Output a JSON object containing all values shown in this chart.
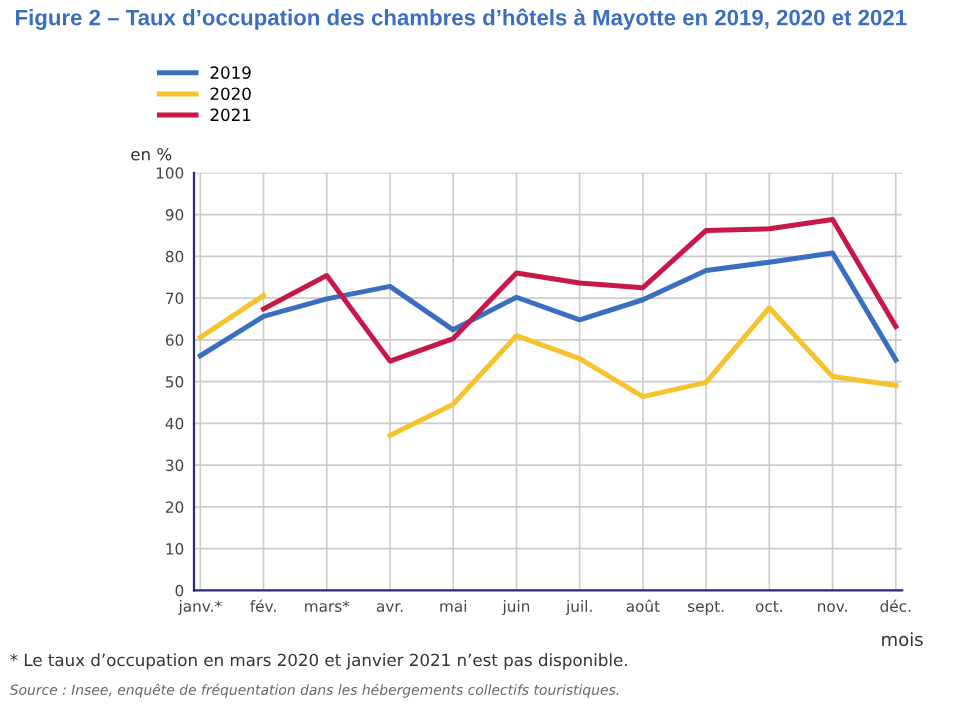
{
  "chart_data": {
    "type": "line",
    "title": "Figure 2 – Taux d’occupation des chambres d’hôtels à Mayotte en 2019, 2020 et 2021",
    "ylabel": "en %",
    "xlabel": "mois",
    "categories": [
      "janv.*",
      "fév.",
      "mars*",
      "avr.",
      "mai",
      "juin",
      "juil.",
      "août",
      "sept.",
      "oct.",
      "nov.",
      "déc."
    ],
    "series": [
      {
        "name": "2019",
        "color": "#3a6fbf",
        "values": [
          56.2,
          65.6,
          69.8,
          72.8,
          62.4,
          70.2,
          64.8,
          69.6,
          76.6,
          78.6,
          80.8,
          55.2
        ]
      },
      {
        "name": "2020",
        "color": "#f5c32c",
        "values": [
          60.6,
          70.6,
          null,
          37.1,
          44.6,
          61.0,
          55.5,
          46.4,
          49.8,
          67.7,
          51.2,
          49.1
        ]
      },
      {
        "name": "2021",
        "color": "#c8184a",
        "values": [
          null,
          67.4,
          75.4,
          54.9,
          60.3,
          76.0,
          73.6,
          72.5,
          86.2,
          86.6,
          88.8,
          63.2
        ]
      }
    ],
    "ylim": [
      0,
      100
    ],
    "yticks": [
      0,
      10,
      20,
      30,
      40,
      50,
      60,
      70,
      80,
      90,
      100
    ],
    "grid": true,
    "legend": "top left",
    "marker": "none",
    "line_style": "solid",
    "annotations": [
      "* Le taux d’occupation en mars 2020 et janvier 2021 n’est pas disponible.",
      "Source : Insee, enquête de fréquentation dans les hébergements collectifs touristiques."
    ]
  }
}
